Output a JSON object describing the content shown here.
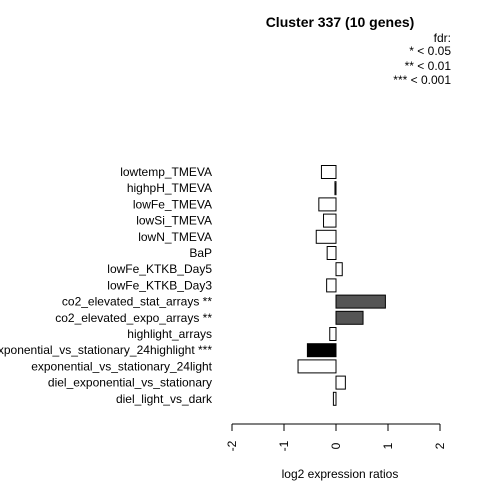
{
  "chart_data": {
    "type": "bar",
    "orientation": "horizontal",
    "title": "Cluster 337 (10 genes)",
    "xlabel": "log2 expression ratios",
    "ylabel": "",
    "xlim": [
      -2,
      2
    ],
    "xticks": [
      "-2",
      "-1",
      "0",
      "1",
      "2"
    ],
    "legend": {
      "position": "top-right",
      "title": "fdr:",
      "entries": [
        "* < 0.05",
        "** < 0.01",
        "*** < 0.001"
      ]
    },
    "categories": [
      "lowtemp_TMEVA",
      "highpH_TMEVA",
      "lowFe_TMEVA",
      "lowSi_TMEVA",
      "lowN_TMEVA",
      "BaP",
      "lowFe_KTKB_Day5",
      "lowFe_KTKB_Day3",
      "co2_elevated_stat_arrays **",
      "co2_elevated_expo_arrays **",
      "highlight_arrays",
      "exponential_vs_stationary_24highlight ***",
      "exponential_vs_stationary_24light",
      "diel_exponential_vs_stationary",
      "diel_light_vs_dark"
    ],
    "values": [
      -0.28,
      -0.02,
      -0.33,
      -0.24,
      -0.38,
      -0.17,
      0.12,
      -0.18,
      0.95,
      0.52,
      -0.12,
      -0.55,
      -0.73,
      0.18,
      -0.05
    ],
    "fill_colors": [
      "#ffffff",
      "#ffffff",
      "#ffffff",
      "#ffffff",
      "#ffffff",
      "#ffffff",
      "#ffffff",
      "#ffffff",
      "#555555",
      "#555555",
      "#ffffff",
      "#000000",
      "#ffffff",
      "#ffffff",
      "#ffffff"
    ]
  }
}
